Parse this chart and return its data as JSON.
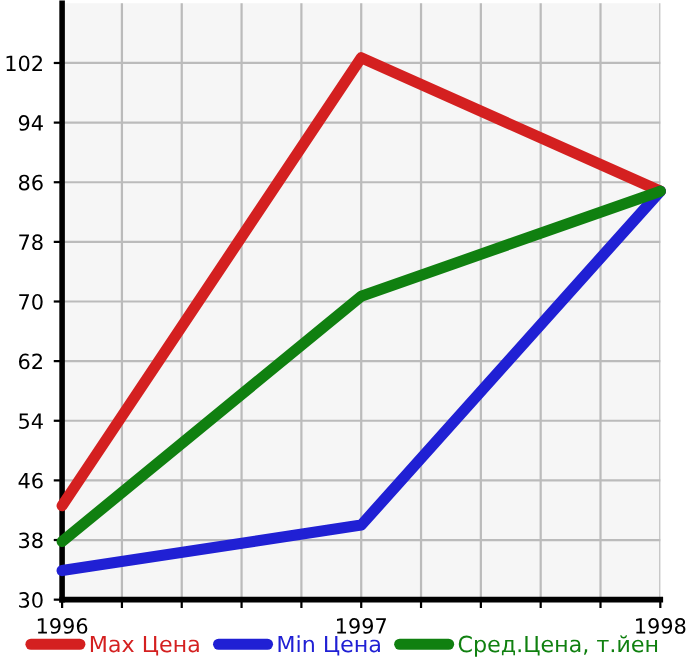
{
  "chart_data": {
    "type": "line",
    "x": [
      1996,
      1997,
      1998
    ],
    "series": [
      {
        "name": "Max Цена",
        "color": "#d42020",
        "values": [
          42.6,
          102.7,
          84.8
        ]
      },
      {
        "name": "Min Цена",
        "color": "#2020d4",
        "values": [
          33.9,
          40.0,
          84.8
        ]
      },
      {
        "name": "Сред.Цена, т.йен",
        "color": "#108010",
        "values": [
          37.8,
          70.7,
          84.8
        ]
      }
    ],
    "xlim": [
      1996,
      1998
    ],
    "xticks": [
      1996,
      {
        "value": 1996.2,
        "label": null
      },
      {
        "value": 1996.4,
        "label": null
      },
      {
        "value": 1996.6,
        "label": null
      },
      {
        "value": 1996.8,
        "label": null
      },
      1997,
      {
        "value": 1997.2,
        "label": null
      },
      {
        "value": 1997.4,
        "label": null
      },
      {
        "value": 1997.6,
        "label": null
      },
      {
        "value": 1997.8,
        "label": null
      },
      1998
    ],
    "ylim": [
      30,
      110
    ],
    "yticks": [
      30,
      38,
      46,
      54,
      62,
      70,
      78,
      86,
      94,
      102
    ],
    "grid": true,
    "legend": "bottom",
    "marker": "none",
    "line_style": "solid"
  }
}
